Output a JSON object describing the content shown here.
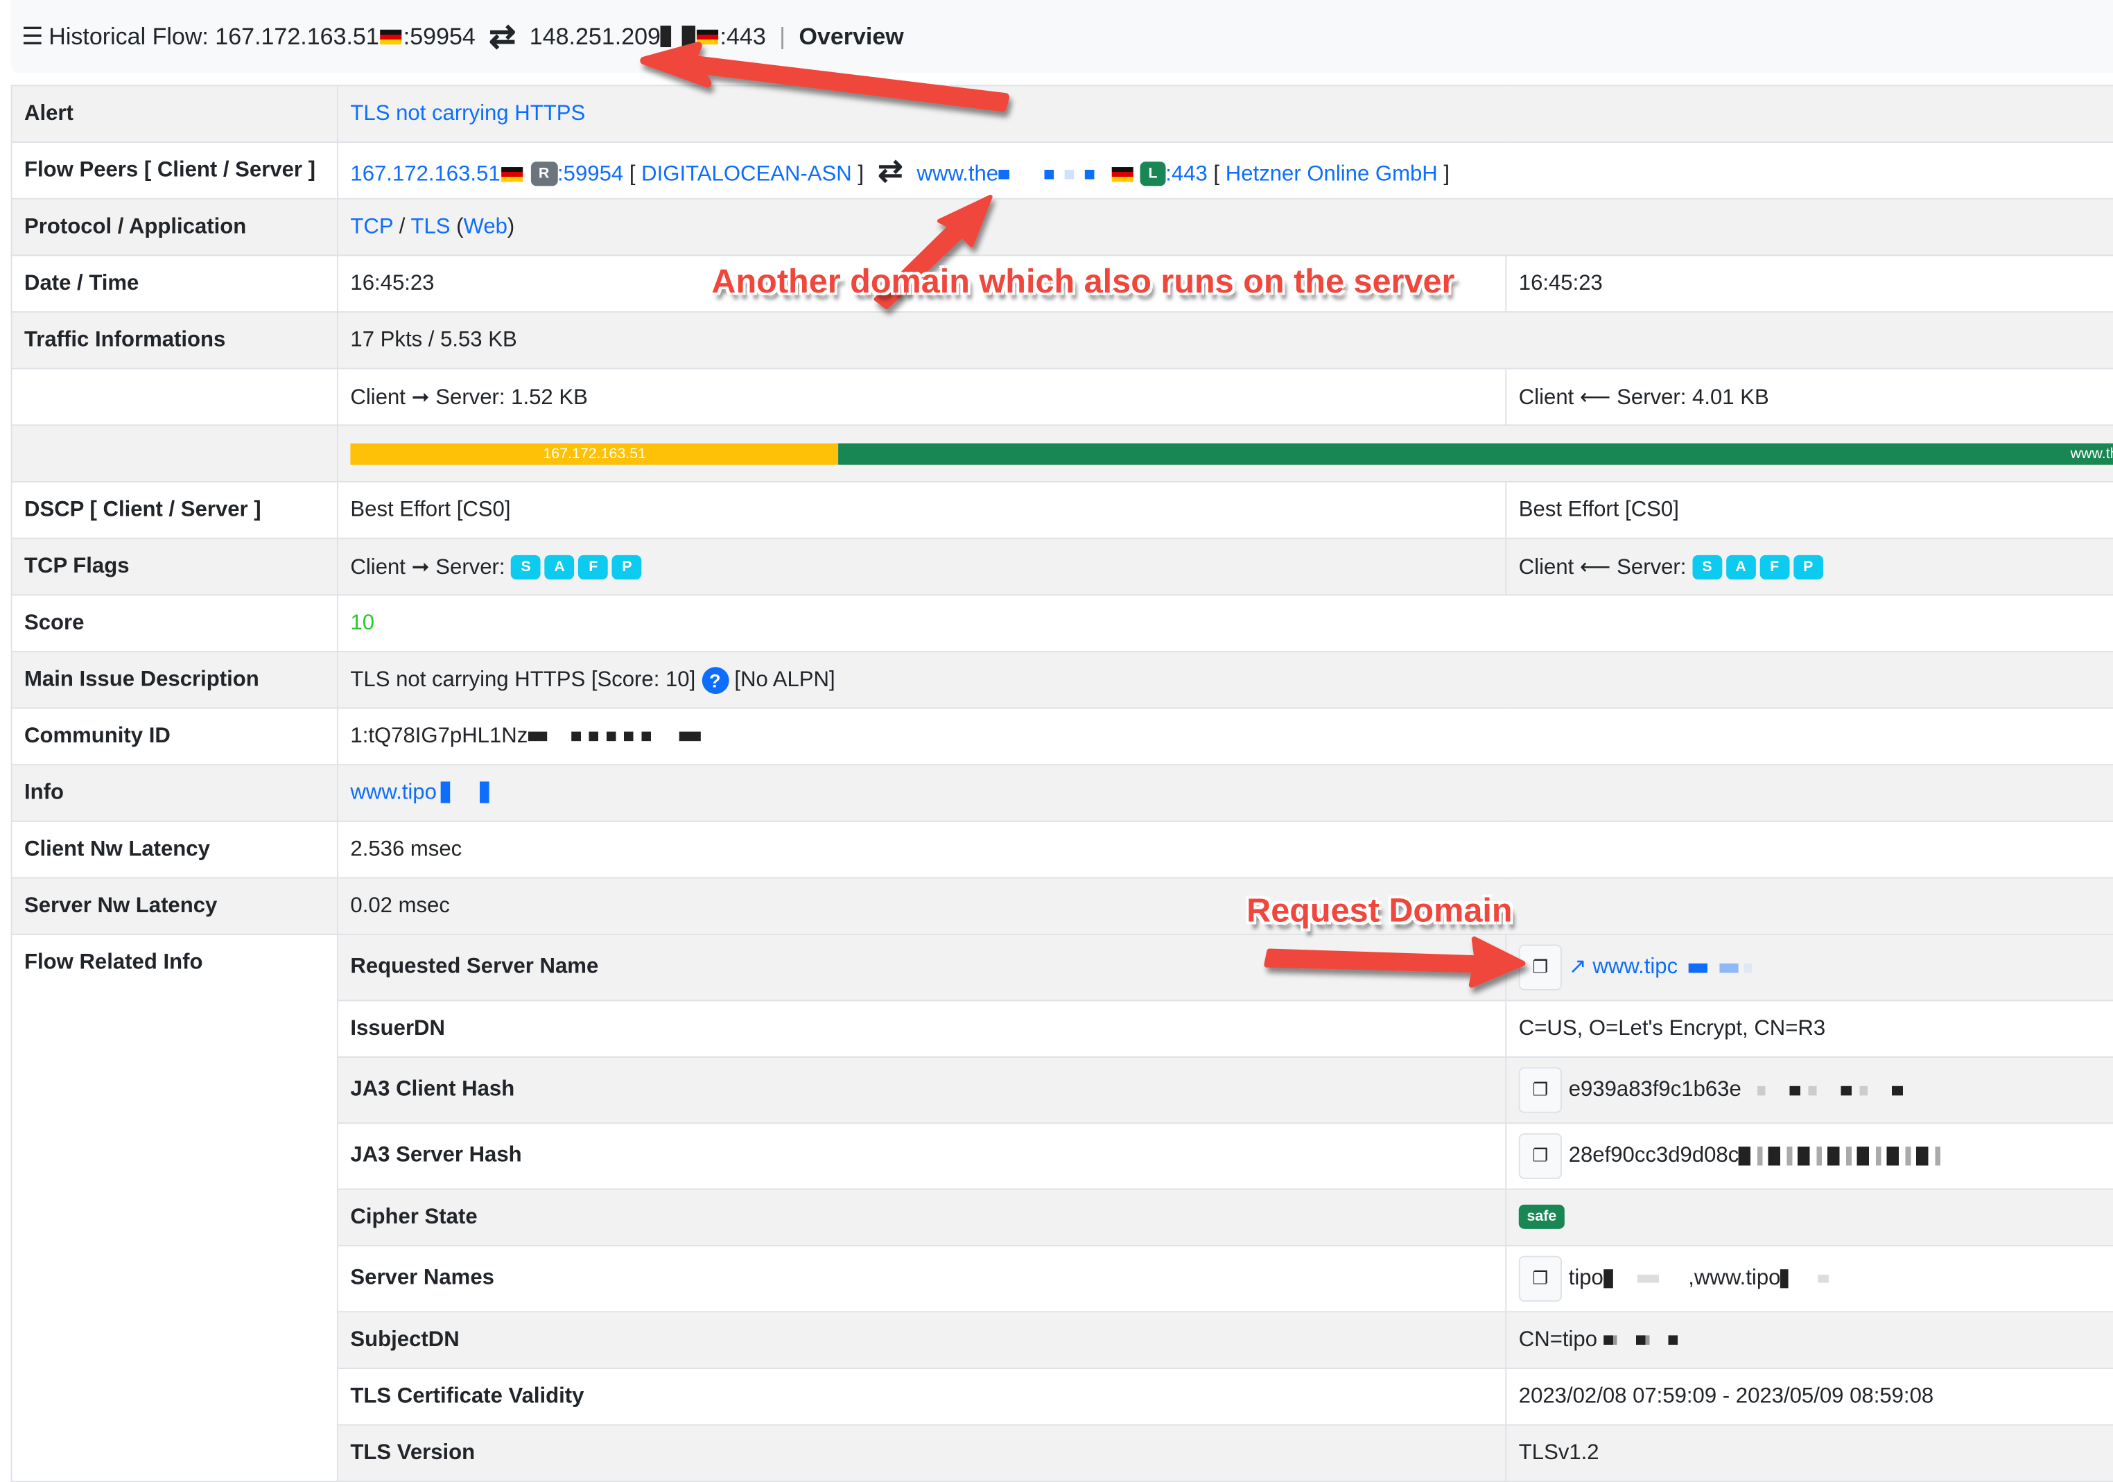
{
  "header": {
    "title_prefix": "Historical Flow: 167.172.163.51",
    "client_port": ":59954",
    "server_ip": "148.251.209",
    "server_port": ":443",
    "separator": "|",
    "page": "Overview"
  },
  "rows": {
    "alert": {
      "label": "Alert",
      "value": "TLS not carrying HTTPS"
    },
    "peers": {
      "label": "Flow Peers [ Client / Server ]",
      "client_ip": "167.172.163.51",
      "client_badge": "R",
      "client_port": ":59954",
      "client_asn": "DIGITALOCEAN-ASN",
      "server_host": "www.the",
      "server_badge": "L",
      "server_port": ":443",
      "server_asn": "Hetzner Online GmbH",
      "open_bracket": "[",
      "close_bracket": "]"
    },
    "protocol": {
      "label": "Protocol / Application",
      "l4": "TCP",
      "slash": "/",
      "l7": "TLS",
      "app": "Web"
    },
    "datetime": {
      "label": "Date / Time",
      "first": "16:45:23",
      "last": "16:45:23"
    },
    "traffic": {
      "label": "Traffic Informations",
      "total": "17 Pkts / 5.53 KB",
      "c2s": "Client ➞ Server: 1.52 KB",
      "s2c": "Client ⟵ Server: 4.01 KB"
    },
    "bar": {
      "client_label": "167.172.163.51",
      "server_label": "www.the",
      "client_percent": 27.5,
      "client_color": "#ffc107",
      "server_color": "#198754"
    },
    "dscp": {
      "label": "DSCP [ Client / Server ]",
      "client": "Best Effort [CS0]",
      "server": "Best Effort [CS0]"
    },
    "tcp_flags": {
      "label": "TCP Flags",
      "c2s_label": "Client ➞ Server:",
      "s2c_label": "Client ⟵ Server:",
      "flags": [
        "S",
        "A",
        "F",
        "P"
      ]
    },
    "score": {
      "label": "Score",
      "value": "10",
      "color": "#28c92a"
    },
    "issue": {
      "label": "Main Issue Description",
      "value": "TLS not carrying HTTPS [Score: 10]",
      "help": "?",
      "extra": "[No ALPN]"
    },
    "community": {
      "label": "Community ID",
      "value": "1:tQ78IG7pHL1Nz"
    },
    "info": {
      "label": "Info",
      "value": "www.tipo"
    },
    "client_latency": {
      "label": "Client Nw Latency",
      "value": "2.536 msec"
    },
    "server_latency": {
      "label": "Server Nw Latency",
      "value": "0.02 msec"
    },
    "flow_related": {
      "label": "Flow Related Info",
      "items": [
        {
          "label": "Requested Server Name",
          "value": "www.tipc"
        },
        {
          "label": "IssuerDN",
          "value": "C=US, O=Let's Encrypt, CN=R3"
        },
        {
          "label": "JA3 Client Hash",
          "value": "e939a83f9c1b63e"
        },
        {
          "label": "JA3 Server Hash",
          "value": "28ef90cc3d9d08c"
        },
        {
          "label": "Cipher State",
          "value": "safe"
        },
        {
          "label": "Server Names",
          "value": "tipo",
          "value2": ",www.tipo"
        },
        {
          "label": "SubjectDN",
          "value": "CN=tipo"
        },
        {
          "label": "TLS Certificate Validity",
          "value": "2023/02/08 07:59:09 - 2023/05/09 08:59:08"
        },
        {
          "label": "TLS Version",
          "value": "TLSv1.2"
        }
      ]
    }
  },
  "annotations": {
    "server_domain": "Another domain which also runs on the server",
    "request_domain": "Request Domain",
    "arrow_color": "#f0463c"
  }
}
